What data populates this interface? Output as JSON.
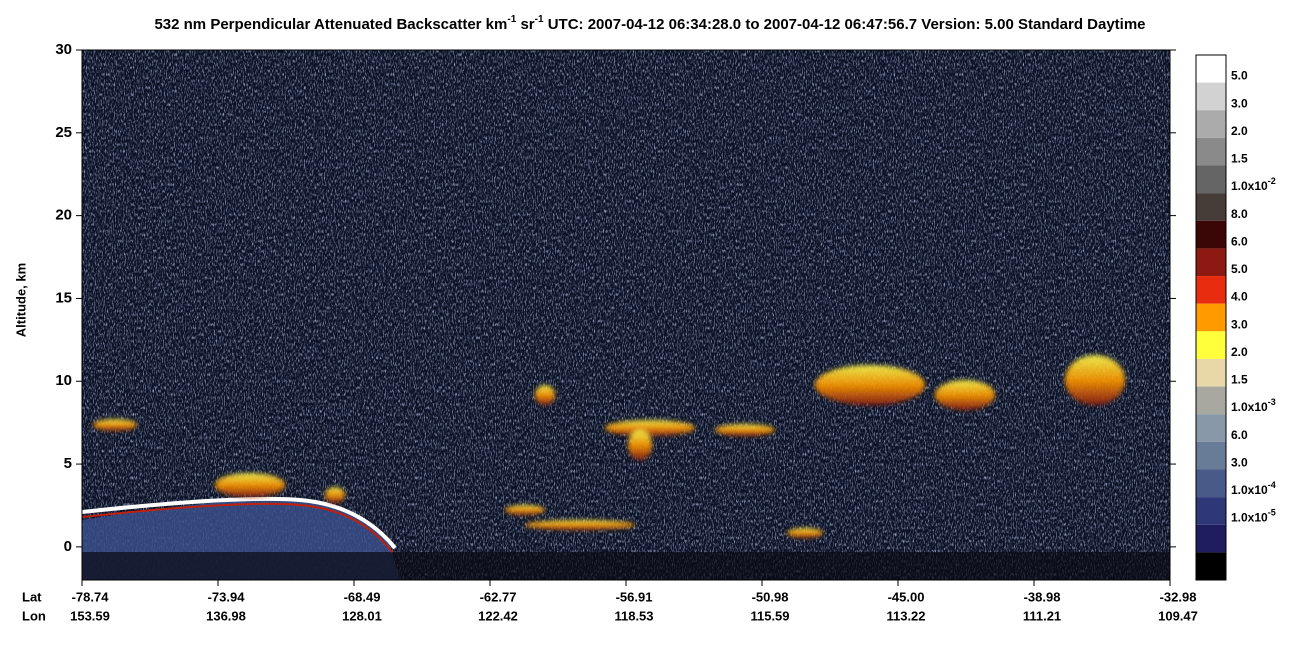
{
  "chart_data": {
    "type": "heatmap",
    "title_parts": [
      "532 nm Perpendicular Attenuated Backscatter km",
      "-1",
      " sr",
      "-1",
      "  UTC: 2007-04-12 06:34:28.0 to 2007-04-12 06:47:56.7  Version: 5.00 Standard Daytime"
    ],
    "y_label": "Altitude, km",
    "ylim": [
      -2,
      30
    ],
    "yticks": [
      0,
      5,
      10,
      15,
      20,
      25,
      30
    ],
    "x_row_names": [
      "Lat",
      "Lon"
    ],
    "lat": [
      "-78.74",
      "-73.94",
      "-68.49",
      "-62.77",
      "-56.91",
      "-50.98",
      "-45.00",
      "-38.98",
      "-32.98"
    ],
    "lon": [
      "153.59",
      "136.98",
      "128.01",
      "122.42",
      "118.53",
      "115.59",
      "113.22",
      "111.21",
      "109.47"
    ],
    "colorbar": {
      "colors": [
        "#ffffff",
        "#d2d2d2",
        "#ababab",
        "#8a8a8a",
        "#656565",
        "#463c38",
        "#3a0606",
        "#8c1a12",
        "#e82c10",
        "#ff9a00",
        "#ffff3c",
        "#e8d8a8",
        "#a8a8a0",
        "#8898a8",
        "#687c98",
        "#4a5a88",
        "#2e3878",
        "#1f1d60",
        "#000000"
      ],
      "labels": [
        {
          "text": "5.0"
        },
        {
          "text": "3.0"
        },
        {
          "text": "2.0"
        },
        {
          "text": "1.5"
        },
        {
          "text": "1.0x10",
          "sup": "-2"
        },
        {
          "text": "8.0"
        },
        {
          "text": "6.0"
        },
        {
          "text": "5.0"
        },
        {
          "text": "4.0"
        },
        {
          "text": "3.0"
        },
        {
          "text": "2.0"
        },
        {
          "text": "1.5"
        },
        {
          "text": "1.0x10",
          "sup": "-3"
        },
        {
          "text": "6.0"
        },
        {
          "text": "3.0"
        },
        {
          "text": "1.0x10",
          "sup": "-4"
        },
        {
          "text": "1.0x10",
          "sup": "-5"
        }
      ]
    }
  }
}
